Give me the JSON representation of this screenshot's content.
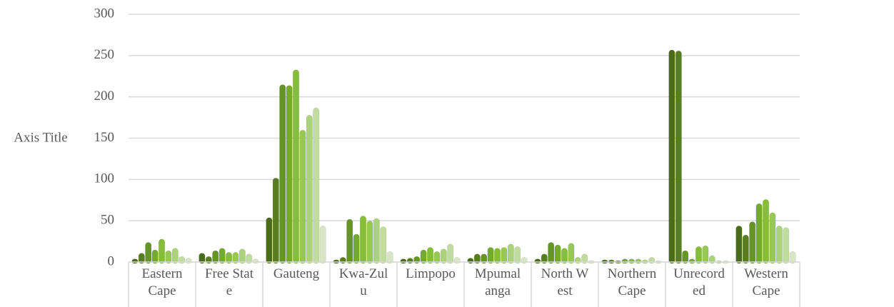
{
  "chart_data": {
    "type": "bar",
    "y_axis_title": "Axis Title",
    "categories": [
      "Eastern Cape",
      "Free State",
      "Gauteng",
      "Kwa-Zulu",
      "Limpopo",
      "Mpumalanga",
      "North West",
      "Northern Cape",
      "Unrecorded",
      "Western Cape"
    ],
    "series": [
      {
        "color": "#4a6a1c",
        "values": [
          2,
          9,
          52,
          1,
          2,
          3,
          2,
          1,
          255,
          42
        ]
      },
      {
        "color": "#567d20",
        "values": [
          9,
          5,
          100,
          4,
          3,
          8,
          8,
          1,
          254,
          31
        ]
      },
      {
        "color": "#659526",
        "values": [
          22,
          12,
          213,
          50,
          5,
          8,
          22,
          0,
          12,
          47
        ]
      },
      {
        "color": "#74aa2e",
        "values": [
          13,
          15,
          212,
          32,
          13,
          16,
          19,
          2,
          2,
          69
        ]
      },
      {
        "color": "#86be38",
        "values": [
          26,
          10,
          231,
          54,
          16,
          15,
          15,
          2,
          17,
          74
        ]
      },
      {
        "color": "#98c854",
        "values": [
          12,
          10,
          158,
          48,
          11,
          16,
          21,
          2,
          18,
          58
        ]
      },
      {
        "color": "#acd27c",
        "values": [
          15,
          14,
          176,
          51,
          14,
          20,
          4,
          1,
          6,
          42
        ]
      },
      {
        "color": "#c0dc9e",
        "values": [
          5,
          8,
          185,
          41,
          20,
          17,
          8,
          4,
          0,
          40
        ]
      },
      {
        "color": "#d8e6c6",
        "values": [
          3,
          2,
          42,
          11,
          4,
          4,
          0,
          0,
          0,
          11
        ]
      }
    ],
    "ylim": [
      0,
      300
    ],
    "yticks": [
      0,
      50,
      100,
      150,
      200,
      250,
      300
    ],
    "grid": true
  }
}
